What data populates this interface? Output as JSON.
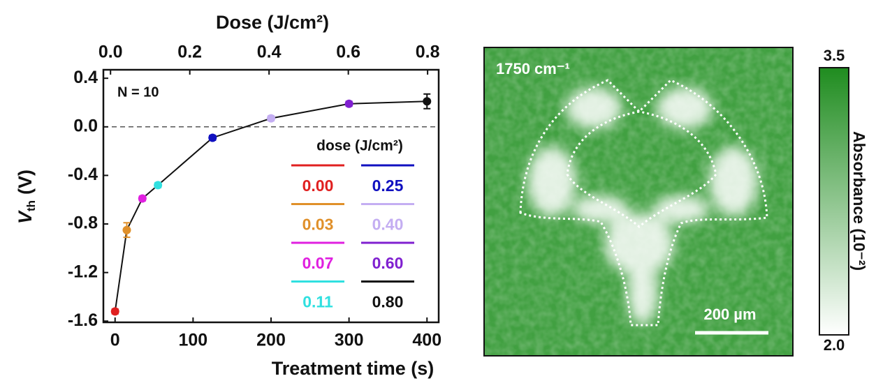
{
  "chart_data": {
    "type": "line",
    "x2label": "Dose (J/cm²)",
    "xlabel": "Treatment time (s)",
    "ylabel": {
      "main": "V",
      "sub": "th",
      "unit": "(V)"
    },
    "annotation": "N = 10",
    "x": [
      0,
      15,
      35,
      55,
      125,
      200,
      300,
      400
    ],
    "values": [
      -1.52,
      -0.85,
      -0.59,
      -0.48,
      -0.09,
      0.07,
      0.19,
      0.21
    ],
    "errors": [
      0.02,
      0.06,
      0.02,
      0.02,
      0.02,
      0.02,
      0.02,
      0.06
    ],
    "colors": [
      "#e02020",
      "#e0902a",
      "#e020e0",
      "#30e0e0",
      "#1010c0",
      "#c4aef2",
      "#8020d0",
      "#111111"
    ],
    "line_color": "#111111",
    "legend_title": "dose (J/cm²)",
    "legend_labels": [
      "0.00",
      "0.03",
      "0.07",
      "0.11",
      "0.25",
      "0.40",
      "0.60",
      "0.80"
    ],
    "xlim": [
      -15,
      415
    ],
    "xticks": [
      0,
      100,
      200,
      300,
      400
    ],
    "x2lim": [
      -0.018,
      0.828
    ],
    "x2ticks": [
      {
        "value": 0,
        "label": "0.0"
      },
      0.2,
      0.4,
      0.6,
      0.8
    ],
    "ylim": [
      -1.61,
      0.47
    ],
    "yticks": [
      0.4,
      {
        "value": 0,
        "label": "0.0"
      },
      -0.4,
      -0.8,
      -1.2,
      -1.6
    ],
    "zero_line": true
  },
  "image": {
    "label": "1750 cm⁻¹",
    "scale_bar": "200 µm",
    "background": "#41a041",
    "colorbar": {
      "label": "Absorbance (10⁻²)",
      "clim": [
        2.0,
        3.5
      ],
      "ticks": [
        {
          "value": 3.5,
          "label": "3.5"
        },
        {
          "value": 2.0,
          "label": "2.0"
        }
      ],
      "color_low": "#ffffff",
      "color_high": "#1f8c1f"
    }
  }
}
